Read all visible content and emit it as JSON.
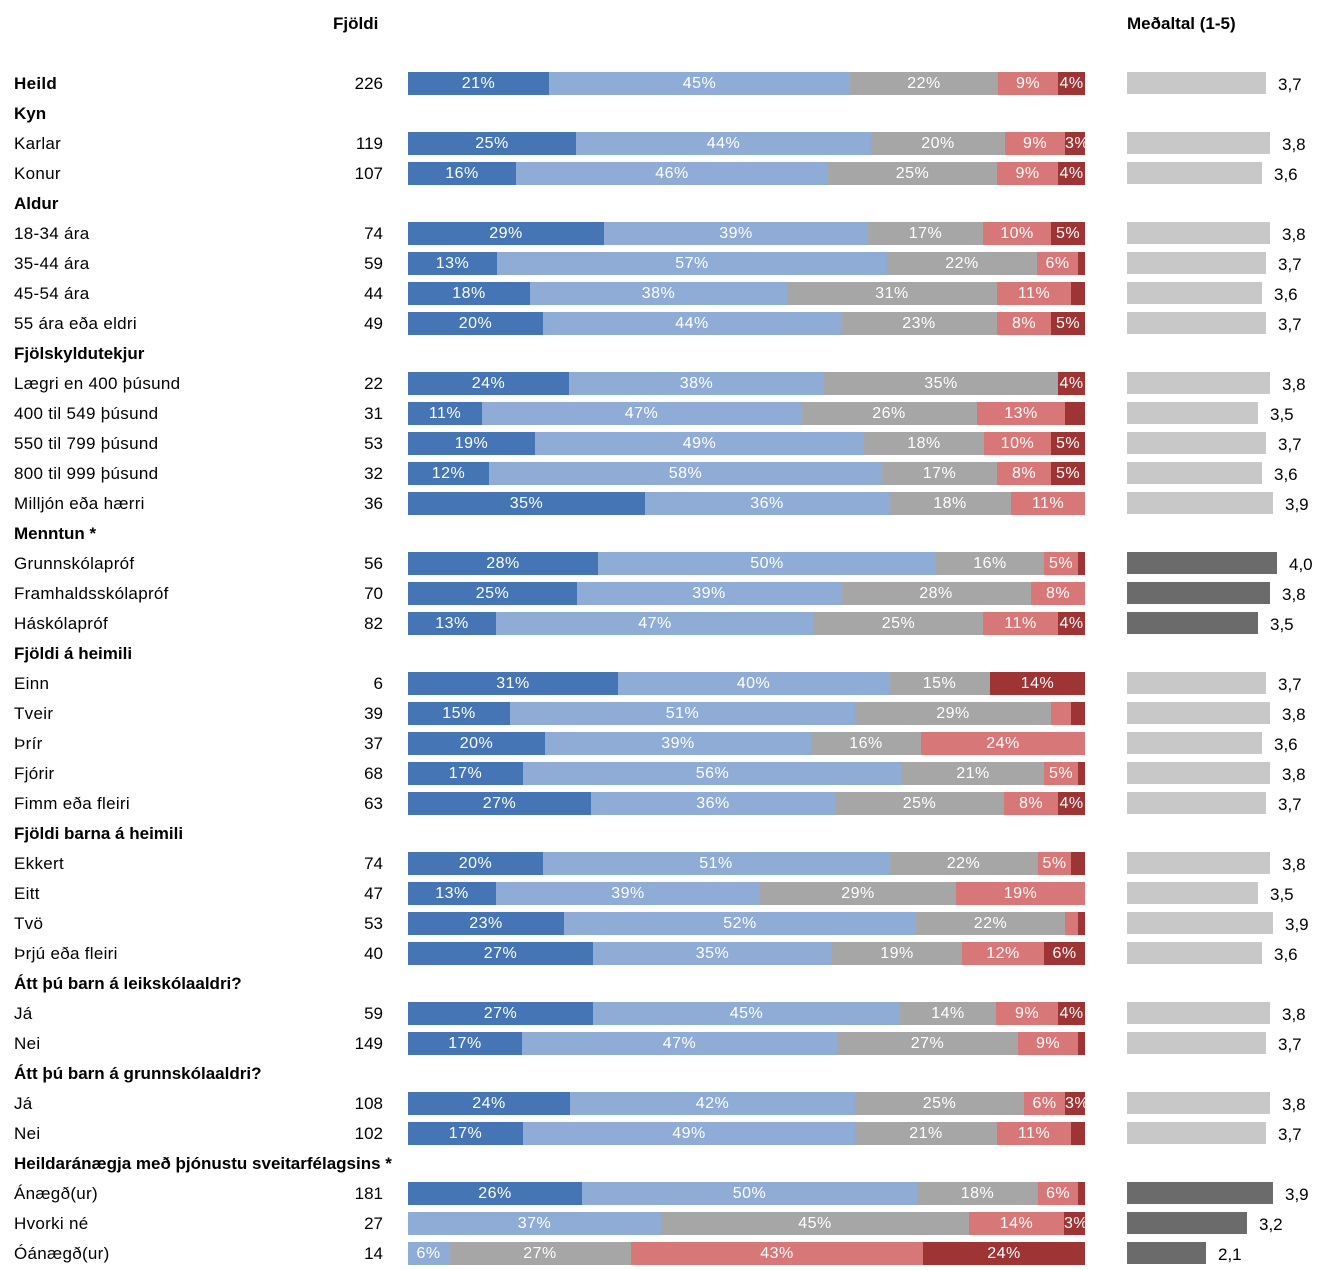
{
  "headers": {
    "count": "Fjöldi",
    "mean": "Meðaltal (1-5)"
  },
  "colors": {
    "segments": [
      "#4575b4",
      "#8eacd6",
      "#a6a6a6",
      "#d87777",
      "#9e3434"
    ],
    "mean_normal": "#c8c8c8",
    "mean_significant": "#6b6b6b"
  },
  "chart_data": {
    "type": "bar",
    "orientation": "horizontal",
    "stacked": true,
    "xlim": [
      0,
      100
    ],
    "mean_scale": [
      1,
      5
    ],
    "rows": [
      {
        "label": "Heild",
        "bold": true,
        "n": "226",
        "segments": [
          21,
          45,
          22,
          9,
          4
        ],
        "seg_labels": [
          "21%",
          "45%",
          "22%",
          "9%",
          "4%"
        ],
        "mean": 3.7,
        "mean_label": "3,7",
        "significant": false
      },
      {
        "label": "Kyn",
        "header": true
      },
      {
        "label": "Karlar",
        "n": "119",
        "segments": [
          25,
          44,
          20,
          9,
          3
        ],
        "seg_labels": [
          "25%",
          "44%",
          "20%",
          "9%",
          "3%"
        ],
        "mean": 3.8,
        "mean_label": "3,8",
        "significant": false
      },
      {
        "label": "Konur",
        "n": "107",
        "segments": [
          16,
          46,
          25,
          9,
          4
        ],
        "seg_labels": [
          "16%",
          "46%",
          "25%",
          "9%",
          "4%"
        ],
        "mean": 3.6,
        "mean_label": "3,6",
        "significant": false
      },
      {
        "label": "Aldur",
        "header": true
      },
      {
        "label": "18-34 ára",
        "n": "74",
        "segments": [
          29,
          39,
          17,
          10,
          5
        ],
        "seg_labels": [
          "29%",
          "39%",
          "17%",
          "10%",
          "5%"
        ],
        "mean": 3.8,
        "mean_label": "3,8",
        "significant": false
      },
      {
        "label": "35-44 ára",
        "n": "59",
        "segments": [
          13,
          57,
          22,
          6,
          1
        ],
        "seg_labels": [
          "13%",
          "57%",
          "22%",
          "6%",
          ""
        ],
        "mean": 3.7,
        "mean_label": "3,7",
        "significant": false
      },
      {
        "label": "45-54 ára",
        "n": "44",
        "segments": [
          18,
          38,
          31,
          11,
          2
        ],
        "seg_labels": [
          "18%",
          "38%",
          "31%",
          "11%",
          ""
        ],
        "mean": 3.6,
        "mean_label": "3,6",
        "significant": false
      },
      {
        "label": "55 ára eða eldri",
        "n": "49",
        "segments": [
          20,
          44,
          23,
          8,
          5
        ],
        "seg_labels": [
          "20%",
          "44%",
          "23%",
          "8%",
          "5%"
        ],
        "mean": 3.7,
        "mean_label": "3,7",
        "significant": false
      },
      {
        "label": "Fjölskyldutekjur",
        "header": true
      },
      {
        "label": "Lægri en 400 þúsund",
        "n": "22",
        "segments": [
          24,
          38,
          35,
          0,
          4
        ],
        "seg_labels": [
          "24%",
          "38%",
          "35%",
          "",
          "4%"
        ],
        "mean": 3.8,
        "mean_label": "3,8",
        "significant": false
      },
      {
        "label": "400 til 549 þúsund",
        "n": "31",
        "segments": [
          11,
          47,
          26,
          13,
          3
        ],
        "seg_labels": [
          "11%",
          "47%",
          "26%",
          "13%",
          ""
        ],
        "mean": 3.5,
        "mean_label": "3,5",
        "significant": false
      },
      {
        "label": "550 til 799 þúsund",
        "n": "53",
        "segments": [
          19,
          49,
          18,
          10,
          5
        ],
        "seg_labels": [
          "19%",
          "49%",
          "18%",
          "10%",
          "5%"
        ],
        "mean": 3.7,
        "mean_label": "3,7",
        "significant": false
      },
      {
        "label": "800 til 999 þúsund",
        "n": "32",
        "segments": [
          12,
          58,
          17,
          8,
          5
        ],
        "seg_labels": [
          "12%",
          "58%",
          "17%",
          "8%",
          "5%"
        ],
        "mean": 3.6,
        "mean_label": "3,6",
        "significant": false
      },
      {
        "label": "Milljón eða hærri",
        "n": "36",
        "segments": [
          35,
          36,
          18,
          11,
          0
        ],
        "seg_labels": [
          "35%",
          "36%",
          "18%",
          "11%",
          ""
        ],
        "mean": 3.9,
        "mean_label": "3,9",
        "significant": false
      },
      {
        "label": "Menntun *",
        "header": true
      },
      {
        "label": "Grunnskólapróf",
        "n": "56",
        "segments": [
          28,
          50,
          16,
          5,
          1
        ],
        "seg_labels": [
          "28%",
          "50%",
          "16%",
          "5%",
          ""
        ],
        "mean": 4.0,
        "mean_label": "4,0",
        "significant": true
      },
      {
        "label": "Framhaldsskólapróf",
        "n": "70",
        "segments": [
          25,
          39,
          28,
          8,
          0
        ],
        "seg_labels": [
          "25%",
          "39%",
          "28%",
          "8%",
          ""
        ],
        "mean": 3.8,
        "mean_label": "3,8",
        "significant": true
      },
      {
        "label": "Háskólapróf",
        "n": "82",
        "segments": [
          13,
          47,
          25,
          11,
          4
        ],
        "seg_labels": [
          "13%",
          "47%",
          "25%",
          "11%",
          "4%"
        ],
        "mean": 3.5,
        "mean_label": "3,5",
        "significant": true
      },
      {
        "label": "Fjöldi á heimili",
        "header": true
      },
      {
        "label": "Einn",
        "n": "6",
        "segments": [
          31,
          40,
          15,
          0,
          14
        ],
        "seg_labels": [
          "31%",
          "40%",
          "15%",
          "",
          "14%"
        ],
        "mean": 3.7,
        "mean_label": "3,7",
        "significant": false
      },
      {
        "label": "Tveir",
        "n": "39",
        "segments": [
          15,
          51,
          29,
          3,
          2
        ],
        "seg_labels": [
          "15%",
          "51%",
          "29%",
          "",
          ""
        ],
        "mean": 3.8,
        "mean_label": "3,8",
        "significant": false
      },
      {
        "label": "Þrír",
        "n": "37",
        "segments": [
          20,
          39,
          16,
          24,
          0
        ],
        "seg_labels": [
          "20%",
          "39%",
          "16%",
          "24%",
          ""
        ],
        "mean": 3.6,
        "mean_label": "3,6",
        "significant": false
      },
      {
        "label": "Fjórir",
        "n": "68",
        "segments": [
          17,
          56,
          21,
          5,
          1
        ],
        "seg_labels": [
          "17%",
          "56%",
          "21%",
          "5%",
          ""
        ],
        "mean": 3.8,
        "mean_label": "3,8",
        "significant": false
      },
      {
        "label": "Fimm eða fleiri",
        "n": "63",
        "segments": [
          27,
          36,
          25,
          8,
          4
        ],
        "seg_labels": [
          "27%",
          "36%",
          "25%",
          "8%",
          "4%"
        ],
        "mean": 3.7,
        "mean_label": "3,7",
        "significant": false
      },
      {
        "label": "Fjöldi barna á heimili",
        "header": true
      },
      {
        "label": "Ekkert",
        "n": "74",
        "segments": [
          20,
          51,
          22,
          5,
          2
        ],
        "seg_labels": [
          "20%",
          "51%",
          "22%",
          "5%",
          ""
        ],
        "mean": 3.8,
        "mean_label": "3,8",
        "significant": false
      },
      {
        "label": "Eitt",
        "n": "47",
        "segments": [
          13,
          39,
          29,
          19,
          0
        ],
        "seg_labels": [
          "13%",
          "39%",
          "29%",
          "19%",
          ""
        ],
        "mean": 3.5,
        "mean_label": "3,5",
        "significant": false
      },
      {
        "label": "Tvö",
        "n": "53",
        "segments": [
          23,
          52,
          22,
          2,
          1
        ],
        "seg_labels": [
          "23%",
          "52%",
          "22%",
          "",
          ""
        ],
        "mean": 3.9,
        "mean_label": "3,9",
        "significant": false
      },
      {
        "label": "Þrjú eða fleiri",
        "n": "40",
        "segments": [
          27,
          35,
          19,
          12,
          6
        ],
        "seg_labels": [
          "27%",
          "35%",
          "19%",
          "12%",
          "6%"
        ],
        "mean": 3.6,
        "mean_label": "3,6",
        "significant": false
      },
      {
        "label": "Átt þú barn á leikskólaaldri?",
        "header": true
      },
      {
        "label": "Já",
        "n": "59",
        "segments": [
          27,
          45,
          14,
          9,
          4
        ],
        "seg_labels": [
          "27%",
          "45%",
          "14%",
          "9%",
          "4%"
        ],
        "mean": 3.8,
        "mean_label": "3,8",
        "significant": false
      },
      {
        "label": "Nei",
        "n": "149",
        "segments": [
          17,
          47,
          27,
          9,
          1
        ],
        "seg_labels": [
          "17%",
          "47%",
          "27%",
          "9%",
          ""
        ],
        "mean": 3.7,
        "mean_label": "3,7",
        "significant": false
      },
      {
        "label": "Átt þú barn á grunnskólaaldri?",
        "header": true
      },
      {
        "label": "Já",
        "n": "108",
        "segments": [
          24,
          42,
          25,
          6,
          3
        ],
        "seg_labels": [
          "24%",
          "42%",
          "25%",
          "6%",
          "3%"
        ],
        "mean": 3.8,
        "mean_label": "3,8",
        "significant": false
      },
      {
        "label": "Nei",
        "n": "102",
        "segments": [
          17,
          49,
          21,
          11,
          2
        ],
        "seg_labels": [
          "17%",
          "49%",
          "21%",
          "11%",
          ""
        ],
        "mean": 3.7,
        "mean_label": "3,7",
        "significant": false
      },
      {
        "label": "Heildaránægja með þjónustu sveitarfélagsins *",
        "header": true
      },
      {
        "label": "Ánægð(ur)",
        "n": "181",
        "segments": [
          26,
          50,
          18,
          6,
          1
        ],
        "seg_labels": [
          "26%",
          "50%",
          "18%",
          "6%",
          ""
        ],
        "mean": 3.9,
        "mean_label": "3,9",
        "significant": true
      },
      {
        "label": "Hvorki né",
        "n": "27",
        "segments": [
          0,
          37,
          45,
          14,
          3
        ],
        "seg_labels": [
          "",
          "37%",
          "45%",
          "14%",
          "3%"
        ],
        "mean": 3.2,
        "mean_label": "3,2",
        "significant": true
      },
      {
        "label": "Óánægð(ur)",
        "n": "14",
        "segments": [
          0,
          6,
          27,
          43,
          24
        ],
        "seg_labels": [
          "",
          "6%",
          "27%",
          "43%",
          "24%"
        ],
        "mean": 2.1,
        "mean_label": "2,1",
        "significant": true
      }
    ]
  }
}
